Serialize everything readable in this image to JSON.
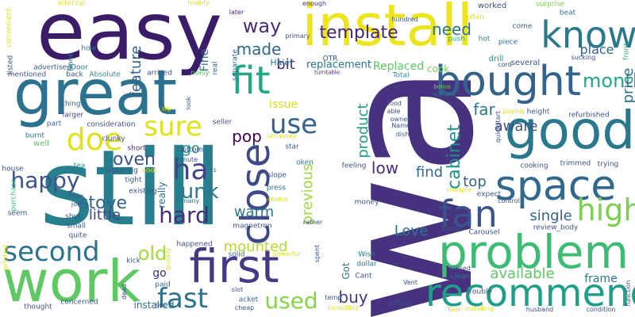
{
  "words": [
    {
      "text": "wa",
      "color": "#46327e"
    },
    {
      "text": "still",
      "color": "#277f8e"
    },
    {
      "text": "easy",
      "color": "#3b1c68"
    },
    {
      "text": "install",
      "color": "#ece51b"
    },
    {
      "text": "great",
      "color": "#2c728e"
    },
    {
      "text": "good",
      "color": "#2a788e"
    },
    {
      "text": "work",
      "color": "#5ec962"
    },
    {
      "text": "problem",
      "color": "#3dbc74"
    },
    {
      "text": "recommend",
      "color": "#1f9e89"
    },
    {
      "text": "bought",
      "color": "#33638d"
    },
    {
      "text": "first",
      "color": "#443983"
    },
    {
      "text": "fit",
      "color": "#22a884"
    },
    {
      "text": "space",
      "color": "#31688e"
    },
    {
      "text": "know",
      "color": "#2a788e"
    },
    {
      "text": "fan",
      "color": "#3b528b"
    },
    {
      "text": "doe",
      "color": "#dde318"
    },
    {
      "text": "close",
      "color": "#3e4989"
    },
    {
      "text": "second",
      "color": "#2c728e"
    },
    {
      "text": "ha",
      "color": "#414487"
    },
    {
      "text": "high",
      "color": "#7ad151"
    },
    {
      "text": "sure",
      "color": "#dde318"
    },
    {
      "text": "use",
      "color": "#33638d"
    },
    {
      "text": "happy",
      "color": "#3b528b"
    },
    {
      "text": "fast",
      "color": "#2c728e"
    },
    {
      "text": "junk",
      "color": "#2a788e"
    },
    {
      "text": "hard",
      "color": "#472d7b"
    },
    {
      "text": "used",
      "color": "#86d549"
    },
    {
      "text": "way",
      "color": "#472d7b"
    },
    {
      "text": "template",
      "color": "#482475"
    },
    {
      "text": "month",
      "color": "#22a884"
    },
    {
      "text": "oven",
      "color": "#3b528b"
    },
    {
      "text": "stove",
      "color": "#33638d"
    },
    {
      "text": "old",
      "color": "#a2da37"
    },
    {
      "text": "need",
      "color": "#2a788e"
    },
    {
      "text": "made",
      "color": "#31688e"
    },
    {
      "text": "bit",
      "color": "#482878"
    },
    {
      "text": "pop",
      "color": "#440154"
    },
    {
      "text": "ago",
      "color": "#21918c"
    },
    {
      "text": "warm",
      "color": "#2a788e"
    },
    {
      "text": "little",
      "color": "#414487"
    },
    {
      "text": "mounted",
      "color": "#b5de2b"
    },
    {
      "text": "feature",
      "color": "#33638d"
    },
    {
      "text": "previous",
      "color": "#a0da39"
    },
    {
      "text": "cabinet",
      "color": "#21918c"
    },
    {
      "text": "low",
      "color": "#472d7b"
    },
    {
      "text": "top",
      "color": "#31688e"
    },
    {
      "text": "single",
      "color": "#33638d"
    },
    {
      "text": "available",
      "color": "#5ec962"
    },
    {
      "text": "product",
      "color": "#1f9e89"
    },
    {
      "text": "find",
      "color": "#31688e"
    },
    {
      "text": "Love",
      "color": "#2a788e"
    },
    {
      "text": "buy",
      "color": "#443983"
    },
    {
      "text": "far",
      "color": "#2a788e"
    },
    {
      "text": "aware",
      "color": "#3b528b"
    },
    {
      "text": "place",
      "color": "#33638d"
    },
    {
      "text": "price",
      "color": "#2c728e"
    },
    {
      "text": "frame",
      "color": "#2a788e"
    },
    {
      "text": "issue",
      "color": "#d8e219"
    },
    {
      "text": "replacement",
      "color": "#2c728e"
    },
    {
      "text": "Replaced",
      "color": "#5ec962"
    },
    {
      "text": "go",
      "color": "#46327e"
    },
    {
      "text": "really",
      "color": "#2c728e"
    },
    {
      "text": "Fine",
      "color": "#31688e"
    },
    {
      "text": "cook",
      "color": "#7ad151"
    },
    {
      "text": "Got",
      "color": "#2a788e"
    },
    {
      "text": "installed",
      "color": "#2c728e"
    },
    {
      "text": "Haier",
      "color": "#2a788e"
    },
    {
      "text": "OTR",
      "color": "#3b528b"
    },
    {
      "text": "drill",
      "color": "#21918c"
    },
    {
      "text": "several",
      "color": "#3b528b"
    },
    {
      "text": "piece",
      "color": "#2a788e"
    },
    {
      "text": "push",
      "color": "#22a884"
    },
    {
      "text": "hot",
      "color": "#26828e"
    },
    {
      "text": "come",
      "color": "#31688e"
    },
    {
      "text": "beat",
      "color": "#2c728e"
    },
    {
      "text": "worked",
      "color": "#3b528b"
    },
    {
      "text": "surprise",
      "color": "#7ad151"
    },
    {
      "text": "front",
      "color": "#35b779"
    },
    {
      "text": "sucking",
      "color": "#3e4989"
    },
    {
      "text": "interval",
      "color": "#dde318"
    },
    {
      "text": "mainly",
      "color": "#dde318"
    },
    {
      "text": "later",
      "color": "#481a6c"
    },
    {
      "text": "enough",
      "color": "#46327e"
    },
    {
      "text": "hundred",
      "color": "#3b528b"
    },
    {
      "text": "primary",
      "color": "#3b528b"
    },
    {
      "text": "soften",
      "color": "#dde318"
    },
    {
      "text": "turntable",
      "color": "#472d7b"
    },
    {
      "text": "bonus",
      "color": "#7ad151"
    },
    {
      "text": "screwed",
      "color": "#2c728e"
    },
    {
      "text": "advertised",
      "color": "#33638d"
    },
    {
      "text": "Door",
      "color": "#2a788e"
    },
    {
      "text": "mentioned",
      "color": "#3b528b"
    },
    {
      "text": "back",
      "color": "#3b528b"
    },
    {
      "text": "Absolute",
      "color": "#21918c"
    },
    {
      "text": "arrived",
      "color": "#3b528b"
    },
    {
      "text": "noisy",
      "color": "#5ec962"
    },
    {
      "text": "real",
      "color": "#31688e"
    },
    {
      "text": "separate",
      "color": "#31688e"
    },
    {
      "text": "convenient",
      "color": "#dde318"
    },
    {
      "text": "hole",
      "color": "#2a788e"
    },
    {
      "text": "listed",
      "color": "#3b528b"
    },
    {
      "text": "None",
      "color": "#2a788e"
    },
    {
      "text": "Total",
      "color": "#21918c"
    },
    {
      "text": "thing",
      "color": "#33638d"
    },
    {
      "text": "larger",
      "color": "#3e4989"
    },
    {
      "text": "consideration",
      "color": "#3b528b"
    },
    {
      "text": "part",
      "color": "#31688e"
    },
    {
      "text": "burnt",
      "color": "#2c728e"
    },
    {
      "text": "well",
      "color": "#5ec962"
    },
    {
      "text": "seller",
      "color": "#3b528b"
    },
    {
      "text": "unsavory",
      "color": "#dde318"
    },
    {
      "text": "clunky",
      "color": "#3e4989"
    },
    {
      "text": "short",
      "color": "#472d7b"
    },
    {
      "text": "star",
      "color": "#3b528b"
    },
    {
      "text": "tea",
      "color": "#21918c"
    },
    {
      "text": "replacing",
      "color": "#3b528b"
    },
    {
      "text": "cool",
      "color": "#dde318"
    },
    {
      "text": "sits",
      "color": "#2a788e"
    },
    {
      "text": "oken",
      "color": "#2a788e"
    },
    {
      "text": "feeling",
      "color": "#3b528b"
    },
    {
      "text": "house",
      "color": "#3b528b"
    },
    {
      "text": "purchase",
      "color": "#3dbc74"
    },
    {
      "text": "tight",
      "color": "#3b528b"
    },
    {
      "text": "existing",
      "color": "#3b528b"
    },
    {
      "text": "slope",
      "color": "#3b528b"
    },
    {
      "text": "press",
      "color": "#31688e"
    },
    {
      "text": "choice",
      "color": "#dde318"
    },
    {
      "text": "hour",
      "color": "#3b528b"
    },
    {
      "text": "job",
      "color": "#3b528b"
    },
    {
      "text": "many",
      "color": "#2a788e"
    },
    {
      "text": "seem",
      "color": "#3b528b"
    },
    {
      "text": "shut",
      "color": "#3b528b"
    },
    {
      "text": "small",
      "color": "#3b528b"
    },
    {
      "text": "magnetron",
      "color": "#3b528b"
    },
    {
      "text": "money",
      "color": "#3b528b"
    },
    {
      "text": "rather",
      "color": "#3b528b"
    },
    {
      "text": "quite",
      "color": "#3b528b"
    },
    {
      "text": "happened",
      "color": "#3b528b"
    },
    {
      "text": "powerful",
      "color": "#dde318"
    },
    {
      "text": "solid",
      "color": "#31688e"
    },
    {
      "text": "Wish",
      "color": "#2a788e"
    },
    {
      "text": "spent",
      "color": "#3b528b"
    },
    {
      "text": "printed",
      "color": "#dde318"
    },
    {
      "text": "kick",
      "color": "#3b528b"
    },
    {
      "text": "quickly",
      "color": "#dde318"
    },
    {
      "text": "paid",
      "color": "#31688e"
    },
    {
      "text": "dollar",
      "color": "#2a788e"
    },
    {
      "text": "Cant",
      "color": "#3b528b"
    },
    {
      "text": "concerned",
      "color": "#3b528b"
    },
    {
      "text": "dead",
      "color": "#3b528b"
    },
    {
      "text": "slot",
      "color": "#3b528b"
    },
    {
      "text": "acket",
      "color": "#31688e"
    },
    {
      "text": "cheap",
      "color": "#3b528b"
    },
    {
      "text": "thought",
      "color": "#3b528b"
    },
    {
      "text": "sec",
      "color": "#3b528b"
    },
    {
      "text": "temp",
      "color": "#3b528b"
    },
    {
      "text": "incredibly",
      "color": "#dde318"
    },
    {
      "text": "sitting",
      "color": "#3b528b"
    },
    {
      "text": "Took",
      "color": "#dde318"
    },
    {
      "text": "installing",
      "color": "#dde318"
    },
    {
      "text": "husband",
      "color": "#3b528b"
    },
    {
      "text": "condition",
      "color": "#3b528b"
    },
    {
      "text": "function",
      "color": "#3b528b"
    },
    {
      "text": "trouble",
      "color": "#3b528b"
    },
    {
      "text": "clean",
      "color": "#2a788e"
    },
    {
      "text": "closed",
      "color": "#3b528b"
    },
    {
      "text": "Vent",
      "color": "#3b528b"
    },
    {
      "text": "Carousel",
      "color": "#3b528b"
    },
    {
      "text": "review_body",
      "color": "#3b528b"
    },
    {
      "text": "Nukes",
      "color": "#3b528b"
    },
    {
      "text": "expect",
      "color": "#3b528b"
    },
    {
      "text": "control",
      "color": "#3b528b"
    },
    {
      "text": "cheaply",
      "color": "#dde318"
    },
    {
      "text": "cooking",
      "color": "#3b528b"
    },
    {
      "text": "trimmed",
      "color": "#3b528b"
    },
    {
      "text": "trying",
      "color": "#3b528b"
    },
    {
      "text": "refurbished",
      "color": "#3b528b"
    },
    {
      "text": "paying",
      "color": "#dde318"
    },
    {
      "text": "height",
      "color": "#3b528b"
    },
    {
      "text": "quickstart",
      "color": "#3b528b"
    },
    {
      "text": "food",
      "color": "#3b528b"
    },
    {
      "text": "able",
      "color": "#3b528b"
    },
    {
      "text": "owner",
      "color": "#3b528b"
    },
    {
      "text": "Name",
      "color": "#3b528b"
    },
    {
      "text": "dish",
      "color": "#3b528b"
    },
    {
      "text": "cord",
      "color": "#3b528b"
    },
    {
      "text": "minute",
      "color": "#3b528b"
    },
    {
      "text": "bottom",
      "color": "#3b528b"
    },
    {
      "text": "look",
      "color": "#3b528b"
    },
    {
      "text": "open",
      "color": "#3b528b"
    },
    {
      "text": "slip",
      "color": "#dde318"
    },
    {
      "text": "give",
      "color": "#3b528b"
    },
    {
      "text": "retention",
      "color": "#3b528b"
    },
    {
      "text": "becomes",
      "color": "#3b528b"
    },
    {
      "text": "Even",
      "color": "#dde318"
    },
    {
      "text": "size",
      "color": "#3b528b"
    },
    {
      "text": "bent",
      "color": "#3b528b"
    }
  ]
}
